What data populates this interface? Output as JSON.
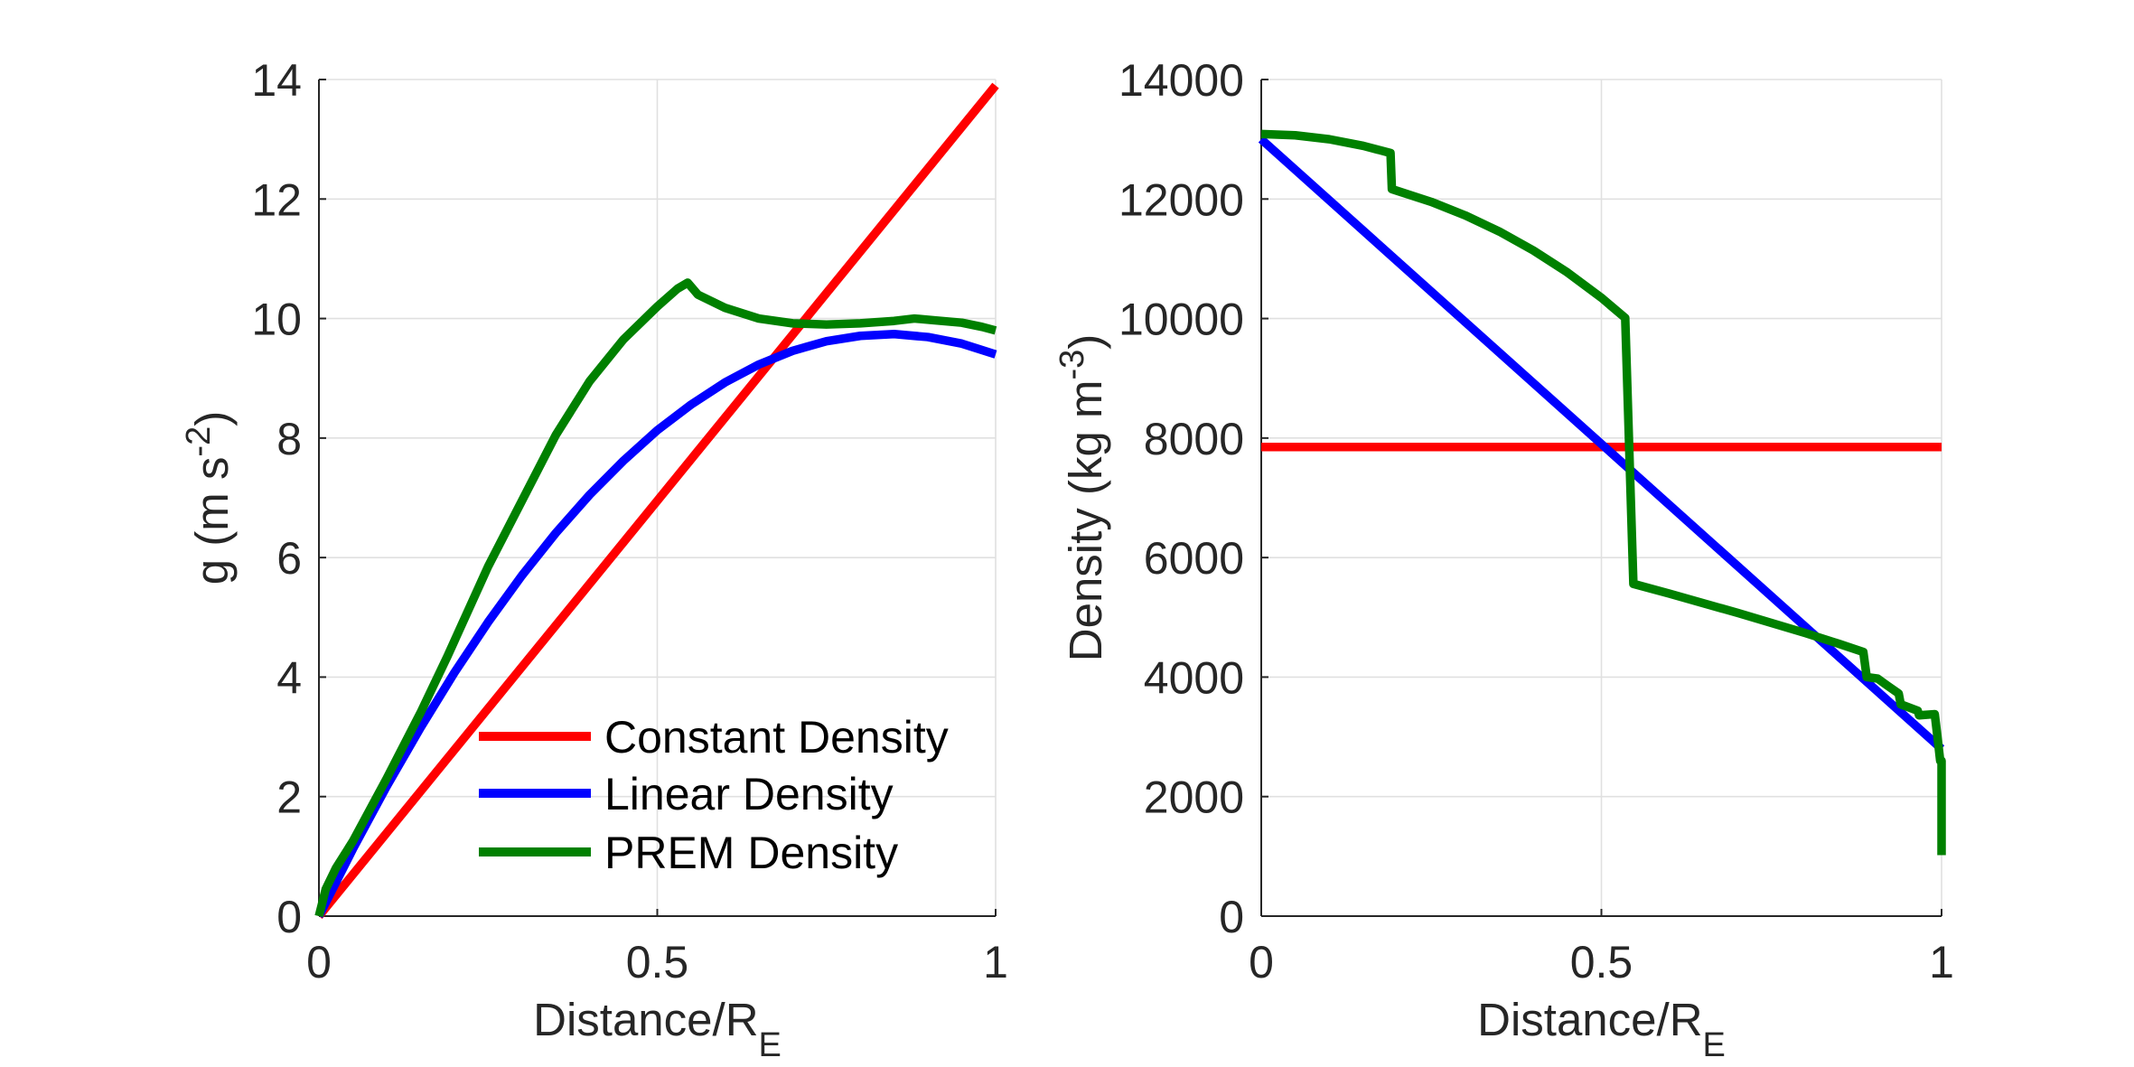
{
  "figure": {
    "background": "#ffffff"
  },
  "chart_data": [
    {
      "type": "line",
      "xlabel": {
        "text": "Distance/R",
        "subscript": "E"
      },
      "ylabel": {
        "text": "g (m s",
        "superscript": "-2",
        "suffix": ")"
      },
      "xlim": [
        0,
        1
      ],
      "ylim": [
        0,
        14
      ],
      "xticks": [
        0,
        0.5,
        1
      ],
      "yticks": [
        0,
        2,
        4,
        6,
        8,
        10,
        12,
        14
      ],
      "grid": true,
      "legend": {
        "location": "bottom-right"
      },
      "series": [
        {
          "name": "Constant Density",
          "color": "#ff0000",
          "x": [
            0,
            1
          ],
          "y": [
            0,
            13.9
          ]
        },
        {
          "name": "Linear Density",
          "color": "#0000ff",
          "x": [
            0,
            0.05,
            0.1,
            0.15,
            0.2,
            0.25,
            0.3,
            0.35,
            0.4,
            0.45,
            0.5,
            0.55,
            0.6,
            0.65,
            0.7,
            0.75,
            0.8,
            0.85,
            0.9,
            0.95,
            1
          ],
          "y": [
            0,
            1.12,
            2.17,
            3.15,
            4.07,
            4.92,
            5.7,
            6.41,
            7.05,
            7.62,
            8.13,
            8.56,
            8.93,
            9.23,
            9.46,
            9.62,
            9.71,
            9.74,
            9.69,
            9.58,
            9.4
          ]
        },
        {
          "name": "PREM Density",
          "color": "#008000",
          "x": [
            0,
            0.01,
            0.025,
            0.05,
            0.1,
            0.15,
            0.19,
            0.25,
            0.3,
            0.35,
            0.4,
            0.45,
            0.5,
            0.53,
            0.545,
            0.56,
            0.6,
            0.65,
            0.7,
            0.75,
            0.8,
            0.85,
            0.88,
            0.91,
            0.95,
            0.98,
            1
          ],
          "y": [
            0,
            0.45,
            0.8,
            1.25,
            2.3,
            3.4,
            4.35,
            5.85,
            6.95,
            8.05,
            8.95,
            9.65,
            10.2,
            10.5,
            10.6,
            10.4,
            10.18,
            10.0,
            9.92,
            9.9,
            9.92,
            9.96,
            10.0,
            9.97,
            9.93,
            9.86,
            9.8
          ]
        }
      ]
    },
    {
      "type": "line",
      "xlabel": {
        "text": "Distance/R",
        "subscript": "E"
      },
      "ylabel": {
        "text": "Density (kg m",
        "superscript": "-3",
        "suffix": ")"
      },
      "xlim": [
        0,
        1
      ],
      "ylim": [
        0,
        14000
      ],
      "xticks": [
        0,
        0.5,
        1
      ],
      "yticks": [
        0,
        2000,
        4000,
        6000,
        8000,
        10000,
        12000,
        14000
      ],
      "grid": true,
      "series": [
        {
          "color": "#ff0000",
          "x": [
            0,
            1
          ],
          "y": [
            7850,
            7850
          ]
        },
        {
          "color": "#0000ff",
          "x": [
            0,
            1
          ],
          "y": [
            13000,
            2800
          ]
        },
        {
          "color": "#008000",
          "x": [
            0,
            0.05,
            0.1,
            0.15,
            0.19,
            0.192,
            0.25,
            0.3,
            0.35,
            0.4,
            0.45,
            0.5,
            0.535,
            0.547,
            0.6,
            0.7,
            0.8,
            0.85,
            0.885,
            0.89,
            0.906,
            0.92,
            0.937,
            0.94,
            0.965,
            0.967,
            0.99,
            0.995,
            0.998,
            1,
            1
          ],
          "y": [
            13088,
            13066,
            13000,
            12890,
            12770,
            12166,
            11952,
            11725,
            11456,
            11139,
            10772,
            10348,
            10010,
            5560,
            5396,
            5075,
            4736,
            4554,
            4420,
            4000,
            3975,
            3860,
            3725,
            3544,
            3436,
            3360,
            3380,
            2900,
            2600,
            2600,
            1020
          ]
        }
      ]
    }
  ]
}
